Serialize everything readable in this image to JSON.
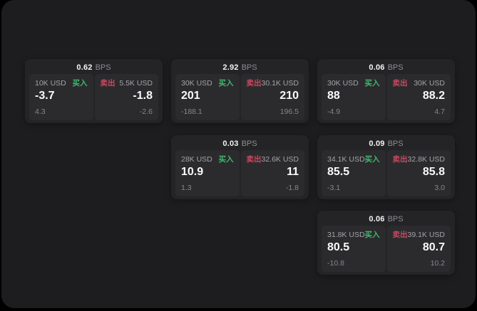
{
  "colors": {
    "buy_green": "#3eb96e",
    "sell_red": "#cc4860"
  },
  "cards": [
    {
      "spread": "0.62",
      "unit": "BPS",
      "buy": {
        "amount": "10K USD",
        "side": "买入",
        "price": "-3.7",
        "sub": "4.3"
      },
      "sell": {
        "side": "卖出",
        "amount": "5.5K USD",
        "price": "-1.8",
        "sub": "-2.6"
      }
    },
    {
      "spread": "2.92",
      "unit": "BPS",
      "buy": {
        "amount": "30K USD",
        "side": "买入",
        "price": "201",
        "sub": "-188.1"
      },
      "sell": {
        "side": "卖出",
        "amount": "30.1K USD",
        "price": "210",
        "sub": "196.5"
      }
    },
    {
      "spread": "0.06",
      "unit": "BPS",
      "buy": {
        "amount": "30K USD",
        "side": "买入",
        "price": "88",
        "sub": "-4.9"
      },
      "sell": {
        "side": "卖出",
        "amount": "30K USD",
        "price": "88.2",
        "sub": "4.7"
      }
    },
    {
      "spread": "0.03",
      "unit": "BPS",
      "buy": {
        "amount": "28K USD",
        "side": "买入",
        "price": "10.9",
        "sub": "1.3"
      },
      "sell": {
        "side": "卖出",
        "amount": "32.6K USD",
        "price": "11",
        "sub": "-1.8"
      }
    },
    {
      "spread": "0.09",
      "unit": "BPS",
      "buy": {
        "amount": "34.1K USD",
        "side": "买入",
        "price": "85.5",
        "sub": "-3.1"
      },
      "sell": {
        "side": "卖出",
        "amount": "32.8K USD",
        "price": "85.8",
        "sub": "3.0"
      }
    },
    {
      "spread": "0.06",
      "unit": "BPS",
      "buy": {
        "amount": "31.8K USD",
        "side": "买入",
        "price": "80.5",
        "sub": "-10.8"
      },
      "sell": {
        "side": "卖出",
        "amount": "39.1K USD",
        "price": "80.7",
        "sub": "10.2"
      }
    }
  ]
}
